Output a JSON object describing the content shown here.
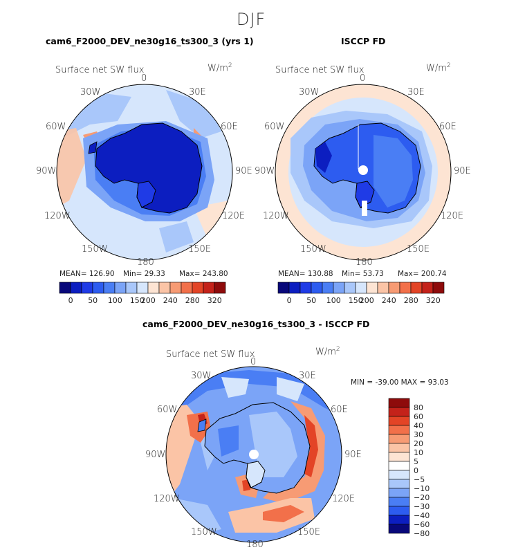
{
  "title": "DJF",
  "panels": [
    {
      "id": "model",
      "title": "cam6_F2000_DEV_ne30g16_ts300_3 (yrs 1)",
      "variable": "Surface net SW flux",
      "units": "W/m",
      "units_exp": "2",
      "stats": {
        "mean": "MEAN= 126.90",
        "min": "Min=   29.33",
        "max": "Max= 243.80"
      },
      "colorbar_labels": [
        "0",
        "50",
        "100",
        "150",
        "200",
        "240",
        "280",
        "320"
      ]
    },
    {
      "id": "obs",
      "title": "ISCCP FD",
      "variable": "Surface net SW flux",
      "units": "W/m",
      "units_exp": "2",
      "stats": {
        "mean": "MEAN= 130.88",
        "min": "Min=   53.73",
        "max": "Max= 200.74"
      },
      "colorbar_labels": [
        "0",
        "50",
        "100",
        "150",
        "200",
        "240",
        "280",
        "320"
      ]
    },
    {
      "id": "diff",
      "title": "cam6_F2000_DEV_ne30g16_ts300_3 - ISCCP FD",
      "variable": "Surface net SW flux",
      "units": "W/m",
      "units_exp": "2",
      "minmax": "MIN = -39.00 MAX =   93.03",
      "colorbar_labels": [
        "80",
        "60",
        "40",
        "30",
        "20",
        "10",
        "5",
        "0",
        "−5",
        "−10",
        "−20",
        "−30",
        "−40",
        "−60",
        "−80"
      ]
    }
  ],
  "longitude_labels": {
    "n": "0",
    "nne": "30E",
    "ene": "60E",
    "e": "90E",
    "ese": "120E",
    "sse": "150E",
    "s": "180",
    "ssw": "150W",
    "wsw": "120W",
    "w": "90W",
    "wnw": "60W",
    "nnw": "30W"
  },
  "colors": {
    "abs_scale": [
      "#08087a",
      "#0c1ec0",
      "#1f3be6",
      "#2d5cf0",
      "#4a7ef4",
      "#7ba4f7",
      "#a9c7fa",
      "#d6e6fc",
      "#fde4d3",
      "#fbc4a6",
      "#f79b74",
      "#f2704a",
      "#e34426",
      "#c4221a",
      "#8e0b0b"
    ],
    "diff_scale": [
      "#8e0b0b",
      "#c4221a",
      "#e34426",
      "#f2704a",
      "#f79b74",
      "#fbc4a6",
      "#fde4d3",
      "#ffffff",
      "#d6e6fc",
      "#a9c7fa",
      "#7ba4f7",
      "#4a7ef4",
      "#2d5cf0",
      "#0c1ec0",
      "#08087a"
    ]
  }
}
